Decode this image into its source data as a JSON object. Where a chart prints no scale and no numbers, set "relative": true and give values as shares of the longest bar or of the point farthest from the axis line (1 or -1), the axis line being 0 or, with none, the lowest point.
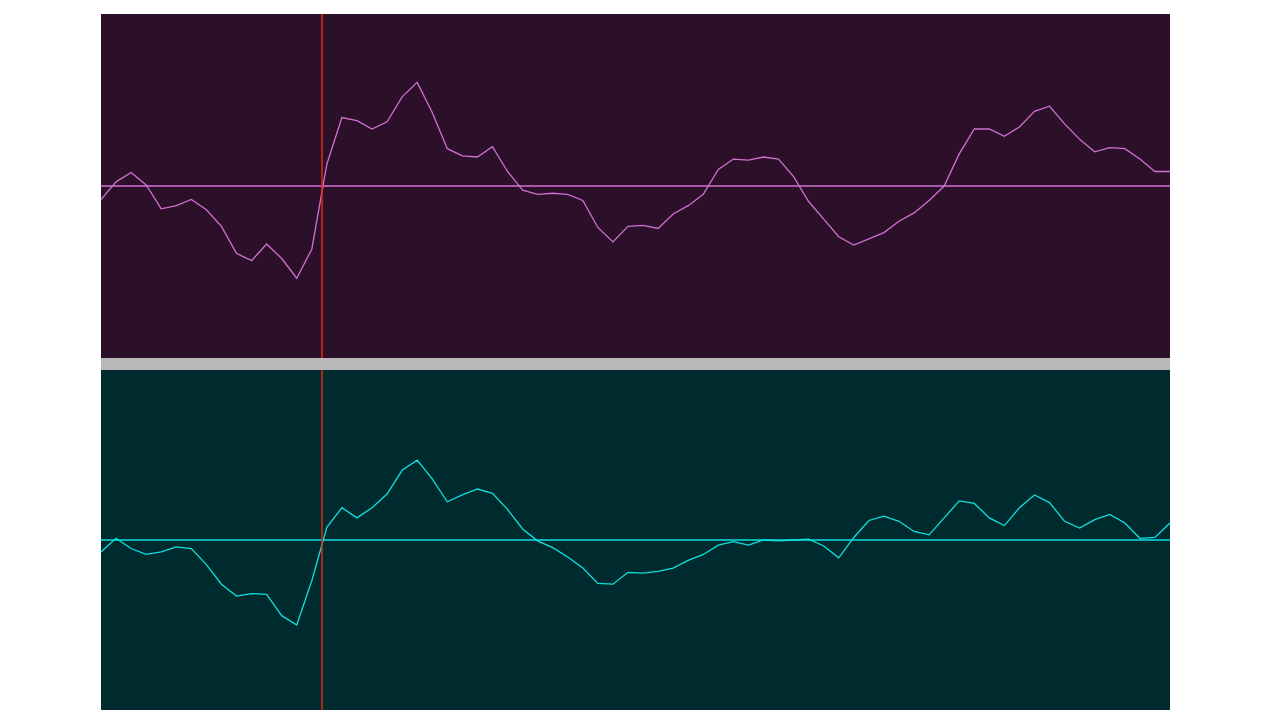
{
  "chart_data": [
    {
      "type": "line",
      "relative": true,
      "grid": false,
      "marker": "none",
      "line_style": "solid",
      "categories": [
        null,
        null,
        null,
        null,
        null,
        null,
        null,
        null,
        null,
        null,
        null,
        null,
        null,
        null,
        null,
        null,
        null,
        null,
        null,
        null,
        null,
        null,
        null,
        null,
        null,
        null,
        null,
        null,
        null,
        null,
        null,
        null,
        null,
        null,
        null,
        null,
        null,
        null,
        null,
        null,
        null,
        null,
        null,
        null,
        null,
        null,
        null,
        null,
        null,
        null,
        null,
        null,
        null,
        null,
        null,
        null,
        null,
        null,
        null,
        null,
        null,
        null,
        null,
        null,
        null,
        null,
        null,
        null,
        null,
        null,
        null,
        null
      ],
      "series": [
        {
          "color": "#d070d0",
          "values": [
            -0.13,
            0.04,
            0.13,
            0.01,
            -0.22,
            -0.19,
            -0.13,
            -0.23,
            -0.39,
            -0.65,
            -0.72,
            -0.56,
            -0.7,
            -0.89,
            -0.61,
            0.21,
            0.66,
            0.63,
            0.55,
            0.62,
            0.86,
            1,
            0.71,
            0.36,
            0.29,
            0.28,
            0.38,
            0.14,
            -0.04,
            -0.08,
            -0.07,
            -0.08,
            -0.14,
            -0.4,
            -0.54,
            -0.39,
            -0.38,
            -0.41,
            -0.27,
            -0.19,
            -0.08,
            0.16,
            0.26,
            0.25,
            0.28,
            0.26,
            0.09,
            -0.15,
            -0.32,
            -0.49,
            -0.57,
            -0.51,
            -0.45,
            -0.34,
            -0.26,
            -0.14,
            0.0,
            0.31,
            0.55,
            0.55,
            0.48,
            0.57,
            0.72,
            0.77,
            0.6,
            0.45,
            0.33,
            0.37,
            0.36,
            0.26,
            0.14,
            0.14
          ]
        }
      ],
      "ref_lines": [
        {
          "axis": "y",
          "value": 0,
          "color": "#d070d0"
        }
      ]
    },
    {
      "type": "line",
      "relative": true,
      "grid": false,
      "marker": "none",
      "line_style": "solid",
      "categories": [
        null,
        null,
        null,
        null,
        null,
        null,
        null,
        null,
        null,
        null,
        null,
        null,
        null,
        null,
        null,
        null,
        null,
        null,
        null,
        null,
        null,
        null,
        null,
        null,
        null,
        null,
        null,
        null,
        null,
        null,
        null,
        null,
        null,
        null,
        null,
        null,
        null,
        null,
        null,
        null,
        null,
        null,
        null,
        null,
        null,
        null,
        null,
        null,
        null,
        null,
        null,
        null,
        null,
        null,
        null,
        null,
        null,
        null,
        null,
        null,
        null,
        null,
        null,
        null,
        null,
        null,
        null,
        null,
        null,
        null,
        null,
        null
      ],
      "series": [
        {
          "color": "#10e0e0",
          "values": [
            -0.14,
            0.02,
            -0.1,
            -0.17,
            -0.14,
            -0.08,
            -0.1,
            -0.29,
            -0.52,
            -0.66,
            -0.63,
            -0.64,
            -0.89,
            -1,
            -0.48,
            0.15,
            0.38,
            0.26,
            0.38,
            0.54,
            0.82,
            0.94,
            0.72,
            0.45,
            0.53,
            0.6,
            0.55,
            0.36,
            0.13,
            -0.01,
            -0.09,
            -0.2,
            -0.33,
            -0.51,
            -0.52,
            -0.38,
            -0.39,
            -0.37,
            -0.33,
            -0.24,
            -0.17,
            -0.06,
            -0.02,
            -0.06,
            0.0,
            -0.01,
            0.0,
            0.01,
            -0.07,
            -0.21,
            0.03,
            0.23,
            0.28,
            0.22,
            0.1,
            0.06,
            0.26,
            0.46,
            0.43,
            0.26,
            0.17,
            0.38,
            0.53,
            0.44,
            0.22,
            0.14,
            0.24,
            0.3,
            0.2,
            0.02,
            0.03,
            0.2
          ]
        }
      ],
      "ref_lines": [
        {
          "axis": "y",
          "value": 0,
          "color": "#10e0e0"
        }
      ]
    }
  ]
}
